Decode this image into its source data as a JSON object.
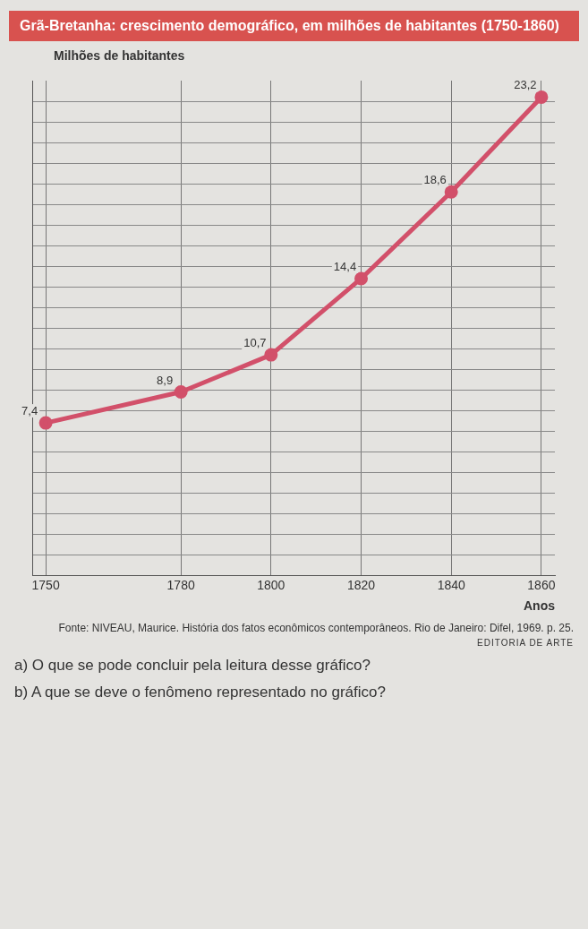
{
  "chart_data": {
    "type": "line",
    "title": "Grã-Bretanha: crescimento demográfico, em milhões de habitantes (1750-1860)",
    "ylabel": "Milhões de habitantes",
    "xlabel": "Anos",
    "x": [
      1750,
      1780,
      1800,
      1820,
      1840,
      1860
    ],
    "series": [
      {
        "color": "#d2506a",
        "values": [
          7.4,
          8.9,
          10.7,
          14.4,
          18.6,
          23.2
        ],
        "value_labels": [
          "7,4",
          "8,9",
          "10,7",
          "14,4",
          "18,6",
          "23,2"
        ]
      }
    ],
    "xlim": [
      1747,
      1863
    ],
    "xticks": [
      1750,
      1780,
      1800,
      1820,
      1840,
      1860
    ],
    "ylim": [
      0,
      24
    ],
    "yticks": [
      {
        "value": 0,
        "label": null
      },
      {
        "value": 1,
        "label": null
      },
      {
        "value": 2,
        "label": null
      },
      {
        "value": 3,
        "label": null
      },
      {
        "value": 4,
        "label": null
      },
      {
        "value": 5,
        "label": null
      },
      {
        "value": 6,
        "label": null
      },
      {
        "value": 7,
        "label": null
      },
      {
        "value": 8,
        "label": null
      },
      {
        "value": 9,
        "label": null
      },
      {
        "value": 10,
        "label": null
      },
      {
        "value": 11,
        "label": null
      },
      {
        "value": 12,
        "label": null
      },
      {
        "value": 13,
        "label": null
      },
      {
        "value": 14,
        "label": null
      },
      {
        "value": 15,
        "label": null
      },
      {
        "value": 16,
        "label": null
      },
      {
        "value": 17,
        "label": null
      },
      {
        "value": 18,
        "label": null
      },
      {
        "value": 19,
        "label": null
      },
      {
        "value": 20,
        "label": null
      },
      {
        "value": 21,
        "label": null
      },
      {
        "value": 22,
        "label": null
      },
      {
        "value": 23,
        "label": null
      }
    ],
    "tick_labels": "x",
    "grid": true,
    "marker": "circle",
    "line_style": "solid",
    "annotations": [
      "Fonte: NIVEAU, Maurice. História dos fatos econômicos contemporâneos. Rio de Janeiro: Difel, 1969. p. 25.",
      "EDITORIA DE ARTE",
      "a) O que se pode concluir pela leitura desse gráfico?",
      "b) A que se deve o fenômeno representado no gráfico?"
    ]
  }
}
